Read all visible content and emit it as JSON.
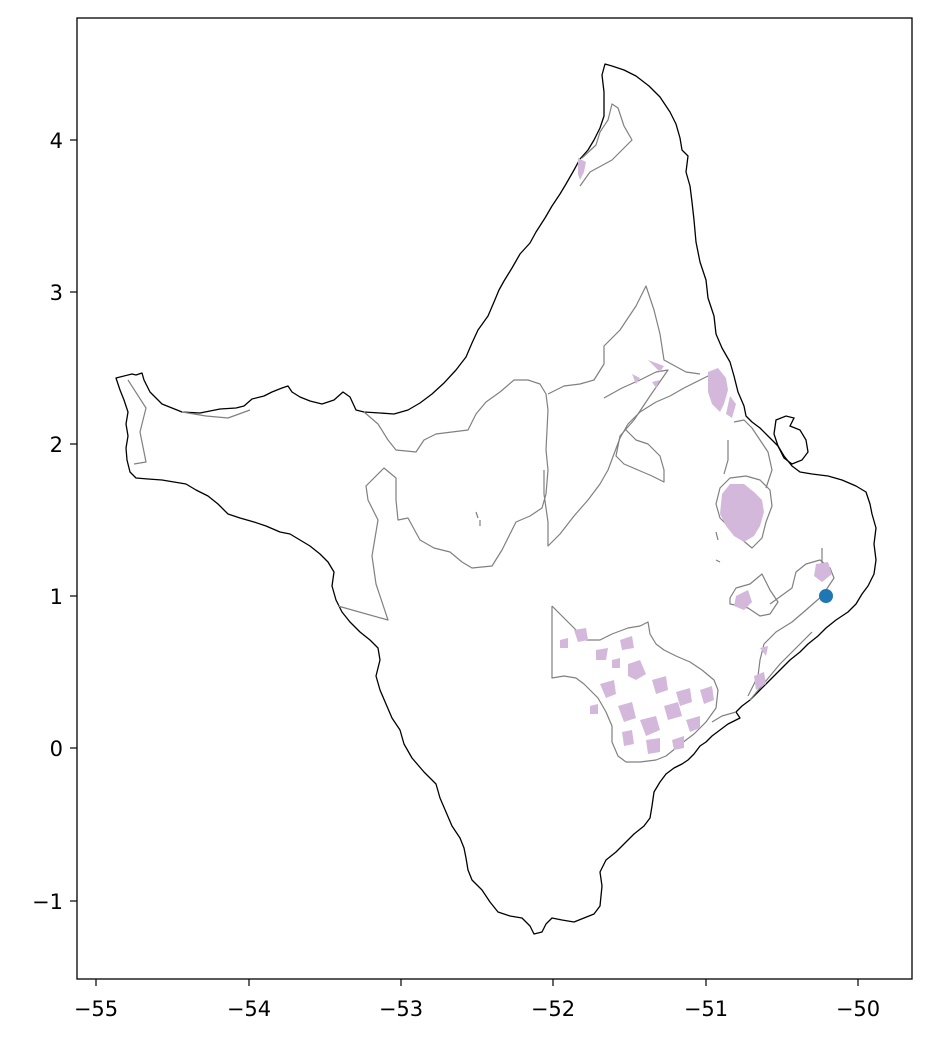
{
  "chart_data": {
    "type": "map",
    "title": "",
    "xlabel": "",
    "ylabel": "",
    "xlim": [
      -55.1,
      -49.65
    ],
    "ylim": [
      -1.52,
      4.8
    ],
    "x_ticks": [
      -55,
      -54,
      -53,
      -52,
      -51,
      -50
    ],
    "y_ticks": [
      -1,
      0,
      1,
      2,
      3,
      4
    ],
    "x_tick_labels": [
      "−55",
      "−54",
      "−53",
      "−52",
      "−51",
      "−50"
    ],
    "y_tick_labels": [
      "−1",
      "0",
      "1",
      "2",
      "3",
      "4"
    ],
    "grid": false,
    "point": {
      "lon": -50.2,
      "lat": 1.0,
      "color": "#1f77b4"
    },
    "colors": {
      "state_outline": "#000000",
      "region_outline": "#808080",
      "patches": "#d4b8dc",
      "point": "#1f77b4"
    },
    "layers": [
      "state-boundary",
      "region-boundaries",
      "land-use-patches",
      "marker-point"
    ]
  }
}
